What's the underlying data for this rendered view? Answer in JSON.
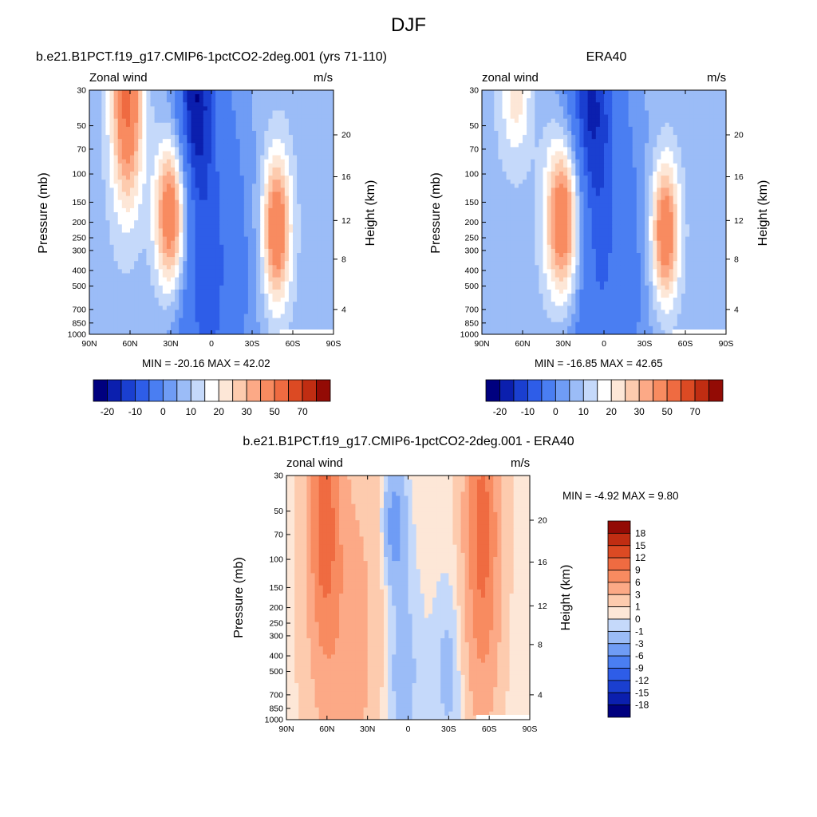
{
  "figure": {
    "title": "DJF",
    "palette": [
      "#00007f",
      "#0b1fae",
      "#1a3fd0",
      "#2e5de8",
      "#4a7ef2",
      "#6f9cf5",
      "#9bbcf7",
      "#c5d9fa",
      "#ffffff",
      "#fde7d7",
      "#fdcbae",
      "#fca986",
      "#f88b60",
      "#ef6b41",
      "#dc4a23",
      "#c02d12",
      "#930b05"
    ],
    "colors": {
      "frame": "#000000",
      "missing": "#ffffff"
    }
  },
  "panels": [
    {
      "id": "model",
      "title": "b.e21.B1PCT.f19_g17.CMIP6-1pctCO2-2deg.001 (yrs 71-110)",
      "variable": "Zonal wind",
      "units": "m/s",
      "ylabel_left": "Pressure (mb)",
      "ylabel_right": "Height (km)",
      "min_max_text": "MIN = -20.16  MAX =  42.02",
      "colorbar_labels": [
        "-20",
        "-10",
        "0",
        "10",
        "20",
        "30",
        "50",
        "70"
      ]
    },
    {
      "id": "obs",
      "title": "ERA40",
      "variable": "zonal wind",
      "units": "m/s",
      "ylabel_left": "Pressure (mb)",
      "ylabel_right": "Height (km)",
      "min_max_text": "MIN = -16.85  MAX =  42.65",
      "colorbar_labels": [
        "-20",
        "-10",
        "0",
        "10",
        "20",
        "30",
        "50",
        "70"
      ]
    },
    {
      "id": "diff",
      "title": "b.e21.B1PCT.f19_g17.CMIP6-1pctCO2-2deg.001 - ERA40",
      "variable": "zonal wind",
      "units": "m/s",
      "ylabel_left": "Pressure (mb)",
      "ylabel_right": "Height (km)",
      "min_max_text": "MIN =  -4.92  MAX =   9.80",
      "colorbar_labels": [
        "18",
        "15",
        "12",
        "9",
        "6",
        "3",
        "1",
        "0",
        "-1",
        "-3",
        "-6",
        "-9",
        "-12",
        "-15",
        "-18"
      ]
    }
  ],
  "chart_data": [
    {
      "type": "heatmap",
      "title": "b.e21.B1PCT.f19_g17.CMIP6-1pctCO2-2deg.001 (yrs 71-110)",
      "field": "Zonal wind",
      "units": "m/s",
      "x_tick_labels": [
        "90N",
        "60N",
        "30N",
        "0",
        "30S",
        "60S",
        "90S"
      ],
      "x_range": [
        90,
        -90
      ],
      "y_tick_labels": [
        "30",
        "50",
        "70",
        "100",
        "150",
        "200",
        "250",
        "300",
        "400",
        "500",
        "700",
        "850",
        "1000"
      ],
      "y_range_mb": [
        1000,
        30
      ],
      "y_scale": "log",
      "right_axis_labels": [
        "4",
        "8",
        "12",
        "16",
        "20"
      ],
      "levels": [
        -25,
        -20,
        -15,
        -10,
        -5,
        0,
        5,
        10,
        15,
        20,
        25,
        30,
        35,
        40,
        45,
        50,
        60,
        70
      ],
      "min": -20.16,
      "max": 42.02,
      "features": [
        {
          "lat": 62,
          "p": 35,
          "value": 40,
          "wlat": 8,
          "wlogp": 0.45
        },
        {
          "lat": 30,
          "p": 180,
          "value": 42,
          "wlat": 8,
          "wlogp": 0.33
        },
        {
          "lat": -48,
          "p": 220,
          "value": 38,
          "wlat": 7,
          "wlogp": 0.32
        },
        {
          "lat": 12,
          "p": 30,
          "value": -20,
          "wlat": 9,
          "wlogp": 0.45
        },
        {
          "lat": -5,
          "p": 400,
          "value": -12,
          "wlat": 20,
          "wlogp": 0.8
        }
      ]
    },
    {
      "type": "heatmap",
      "title": "ERA40",
      "field": "zonal wind",
      "units": "m/s",
      "x_tick_labels": [
        "90N",
        "60N",
        "30N",
        "0",
        "30S",
        "60S",
        "90S"
      ],
      "x_range": [
        90,
        -90
      ],
      "y_tick_labels": [
        "30",
        "50",
        "70",
        "100",
        "150",
        "200",
        "250",
        "300",
        "400",
        "500",
        "700",
        "850",
        "1000"
      ],
      "y_range_mb": [
        1000,
        30
      ],
      "y_scale": "log",
      "right_axis_labels": [
        "4",
        "8",
        "12",
        "16",
        "20"
      ],
      "levels": [
        -25,
        -20,
        -15,
        -10,
        -5,
        0,
        5,
        10,
        15,
        20,
        25,
        30,
        35,
        40,
        45,
        50,
        60,
        70
      ],
      "min": -16.85,
      "max": 42.65,
      "features": [
        {
          "lat": 30,
          "p": 190,
          "value": 43,
          "wlat": 9,
          "wlogp": 0.35
        },
        {
          "lat": -45,
          "p": 230,
          "value": 38,
          "wlat": 7,
          "wlogp": 0.3
        },
        {
          "lat": 65,
          "p": 30,
          "value": 15,
          "wlat": 8,
          "wlogp": 0.3
        },
        {
          "lat": 10,
          "p": 35,
          "value": -17,
          "wlat": 12,
          "wlogp": 0.5
        },
        {
          "lat": -10,
          "p": 400,
          "value": -10,
          "wlat": 20,
          "wlogp": 0.8
        }
      ]
    },
    {
      "type": "heatmap",
      "title": "b.e21.B1PCT.f19_g17.CMIP6-1pctCO2-2deg.001 - ERA40",
      "field": "zonal wind",
      "units": "m/s",
      "x_tick_labels": [
        "90N",
        "60N",
        "30N",
        "0",
        "30S",
        "60S",
        "90S"
      ],
      "x_range": [
        90,
        -90
      ],
      "y_tick_labels": [
        "30",
        "50",
        "70",
        "100",
        "150",
        "200",
        "250",
        "300",
        "400",
        "500",
        "700",
        "850",
        "1000"
      ],
      "y_range_mb": [
        1000,
        30
      ],
      "y_scale": "log",
      "right_axis_labels": [
        "4",
        "8",
        "12",
        "16",
        "20"
      ],
      "levels": [
        -18,
        -15,
        -12,
        -9,
        -6,
        -3,
        -1,
        0,
        1,
        3,
        6,
        9,
        12,
        15,
        18
      ],
      "min": -4.92,
      "max": 9.8,
      "features": [
        {
          "lat": 62,
          "p": 50,
          "value": 9,
          "wlat": 8,
          "wlogp": 0.6
        },
        {
          "lat": -55,
          "p": 70,
          "value": 9.8,
          "wlat": 9,
          "wlogp": 0.75
        },
        {
          "lat": 45,
          "p": 300,
          "value": 4,
          "wlat": 18,
          "wlogp": 0.8
        },
        {
          "lat": 10,
          "p": 60,
          "value": -4.9,
          "wlat": 6,
          "wlogp": 0.25
        },
        {
          "lat": 5,
          "p": 500,
          "value": -2.5,
          "wlat": 10,
          "wlogp": 0.5
        },
        {
          "lat": -30,
          "p": 500,
          "value": -2,
          "wlat": 8,
          "wlogp": 0.4
        }
      ]
    }
  ]
}
